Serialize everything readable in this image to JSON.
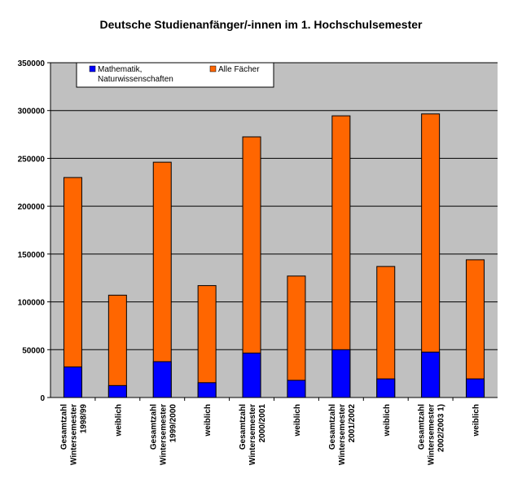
{
  "chart_data": {
    "type": "bar",
    "stacked": true,
    "title": "Deutsche Studienanfänger/-innen im 1. Hochschulsemester",
    "xlabel": "",
    "ylabel": "",
    "ylim": [
      0,
      350000
    ],
    "yticks": [
      0,
      50000,
      100000,
      150000,
      200000,
      250000,
      300000,
      350000
    ],
    "ytick_labels": [
      "0",
      "50000",
      "100000",
      "150000",
      "200000",
      "250000",
      "300000",
      "350000"
    ],
    "grid": true,
    "legend_position": "top-left",
    "categories": [
      [
        "Gesamtzahl",
        "Wintersemester",
        "1998/99"
      ],
      [
        "weiblich"
      ],
      [
        "Gesamtzahl",
        "Wintersemester",
        "1999/2000"
      ],
      [
        "weiblich"
      ],
      [
        "Gesamtzahl",
        "Wintersemester",
        "2000/2001"
      ],
      [
        "weiblich"
      ],
      [
        "Gesamtzahl",
        "Wintersemester",
        "2001/2002"
      ],
      [
        "weiblich"
      ],
      [
        "Gesamtzahl",
        "Wintersemester",
        "2002/2003  1)"
      ],
      [
        "weiblich"
      ]
    ],
    "series": [
      {
        "name": "Mathematik, Naturwissenschaften",
        "legend_lines": [
          "Mathematik,",
          "Naturwissenschaften"
        ],
        "color": "#0000FF",
        "values": [
          32000,
          12500,
          37500,
          15500,
          46500,
          18000,
          50000,
          19500,
          47500,
          19500
        ]
      },
      {
        "name": "Alle Fächer",
        "legend_lines": [
          "Alle Fächer"
        ],
        "color": "#FF6600",
        "values": [
          230000,
          107000,
          246000,
          117000,
          272500,
          127000,
          294500,
          137000,
          296500,
          144000
        ]
      }
    ],
    "plot_background": "#C0C0C0"
  }
}
